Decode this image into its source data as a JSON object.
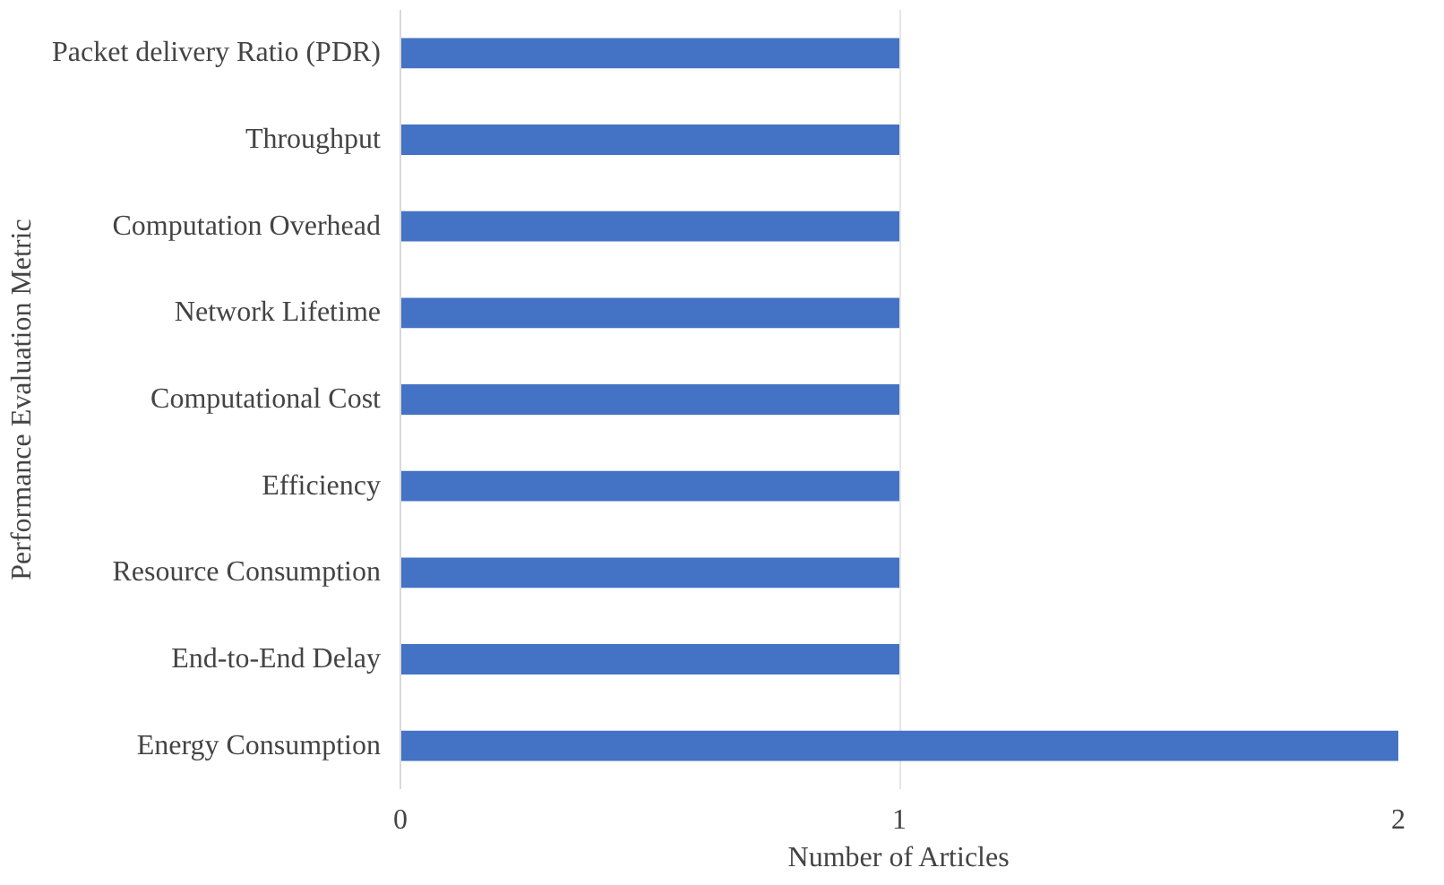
{
  "chart_data": {
    "type": "bar",
    "orientation": "horizontal",
    "xlabel": "Number of Articles",
    "ylabel": "Performance Evaluation Metric",
    "categories": [
      "Packet delivery Ratio (PDR)",
      "Throughput",
      "Computation Overhead",
      "Network Lifetime",
      "Computational Cost",
      "Efficiency",
      "Resource Consumption",
      "End-to-End Delay",
      "Energy Consumption"
    ],
    "values": [
      1,
      1,
      1,
      1,
      1,
      1,
      1,
      1,
      2
    ],
    "color": "#4472c4",
    "xlim": [
      0,
      2
    ],
    "xticks": [
      0,
      1,
      2
    ],
    "grid": "x"
  }
}
